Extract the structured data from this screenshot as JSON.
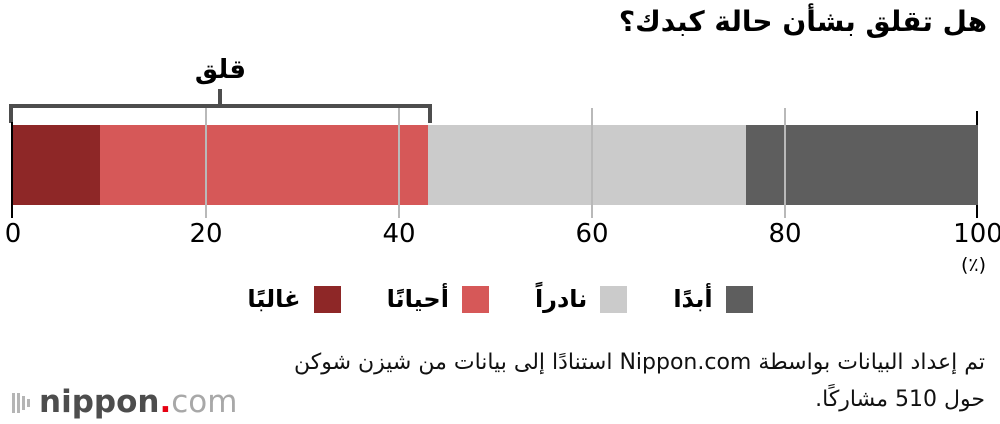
{
  "title": "هل تقلق بشأن حالة كبدك؟",
  "chart_data": {
    "type": "bar",
    "orientation": "horizontal-stacked",
    "title": "هل تقلق بشأن حالة كبدك؟",
    "series": [
      {
        "name": "غالبًا",
        "value": 9,
        "color": "#8e2727"
      },
      {
        "name": "أحيانًا",
        "value": 34,
        "color": "#d65858"
      },
      {
        "name": "نادراً",
        "value": 33,
        "color": "#cbcbcb"
      },
      {
        "name": "أبدًا",
        "value": 24,
        "color": "#5e5e5e"
      }
    ],
    "x_ticks": [
      0,
      20,
      40,
      60,
      80,
      100
    ],
    "xlim": [
      0,
      100
    ],
    "unit_label": "(٪)",
    "bracket": {
      "label": "قلق",
      "from": 0,
      "to": 43
    },
    "legend_position": "bottom-center",
    "grid": true
  },
  "footer": {
    "source_line1": "تم إعداد البيانات بواسطة Nippon.com استنادًا إلى بيانات من شيزن شوكن",
    "source_line2": "حول 510 مشاركًا."
  },
  "logo": {
    "icon": "soundwave-bars-icon",
    "name_bold": "nippon",
    "dot": ".",
    "name_light": "com",
    "dot_color": "#e60012"
  }
}
